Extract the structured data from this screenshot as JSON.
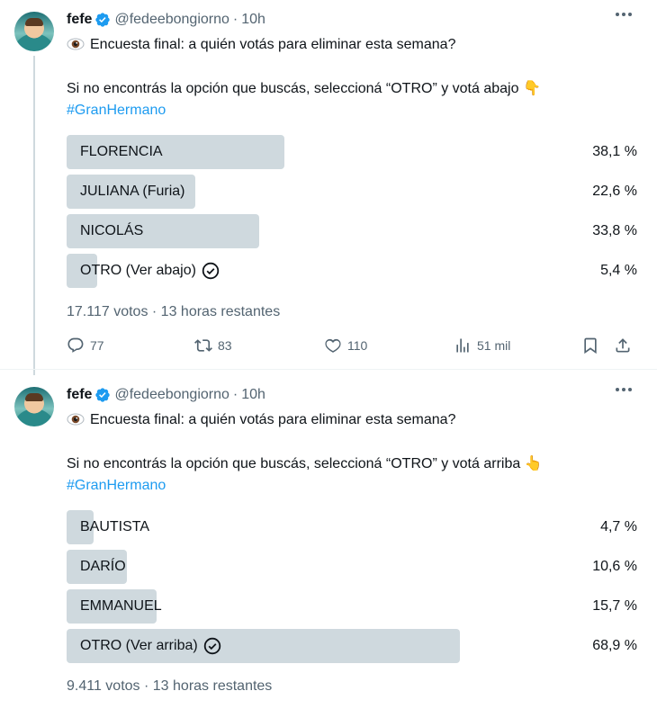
{
  "tweets": [
    {
      "author": {
        "name": "fefe",
        "handle": "@fedeebongiorno",
        "time": "10h"
      },
      "line1": "Encuesta final: a quién votás para eliminar esta semana?",
      "line2": "Si no encontrás la opción que buscás, seleccioná “OTRO” y votá abajo",
      "line2_emoji": "👇",
      "hashtag": "#GranHermano",
      "poll": {
        "options": [
          {
            "label": "FLORENCIA",
            "percent_text": "38,1 %",
            "percent": 38.1
          },
          {
            "label": "JULIANA (Furia)",
            "percent_text": "22,6 %",
            "percent": 22.6
          },
          {
            "label": "NICOLÁS",
            "percent_text": "33,8 %",
            "percent": 33.8
          },
          {
            "label": "OTRO (Ver abajo)",
            "percent_text": "5,4 %",
            "percent": 5.4,
            "voted": true
          }
        ],
        "votes": "17.117 votos",
        "remaining": "13 horas restantes"
      },
      "actions": {
        "replies": "77",
        "retweets": "83",
        "likes": "110",
        "views": "51 mil"
      }
    },
    {
      "author": {
        "name": "fefe",
        "handle": "@fedeebongiorno",
        "time": "10h"
      },
      "line1": "Encuesta final: a quién votás para eliminar esta semana?",
      "line2": "Si no encontrás la opción que buscás, seleccioná “OTRO” y votá arriba",
      "line2_emoji": "👆",
      "hashtag": "#GranHermano",
      "poll": {
        "options": [
          {
            "label": "BAUTISTA",
            "percent_text": "4,7 %",
            "percent": 4.7
          },
          {
            "label": "DARÍO",
            "percent_text": "10,6 %",
            "percent": 10.6
          },
          {
            "label": "EMMANUEL",
            "percent_text": "15,7 %",
            "percent": 15.7
          },
          {
            "label": "OTRO (Ver arriba)",
            "percent_text": "68,9 %",
            "percent": 68.9,
            "voted": true
          }
        ],
        "votes": "9.411 votos",
        "remaining": "13 horas restantes"
      }
    }
  ],
  "separator": "·",
  "icons": {
    "verified": "verified-badge-icon",
    "eye": "eye-emoji-icon",
    "more": "more-dots-icon",
    "reply": "reply-icon",
    "retweet": "retweet-icon",
    "like": "heart-icon",
    "views": "views-chart-icon",
    "bookmark": "bookmark-icon",
    "share": "share-icon",
    "check": "check-circle-icon"
  },
  "colors": {
    "accent": "#1d9bf0",
    "poll_bar": "#cfd9de",
    "muted": "#536471",
    "text": "#0f1419"
  }
}
